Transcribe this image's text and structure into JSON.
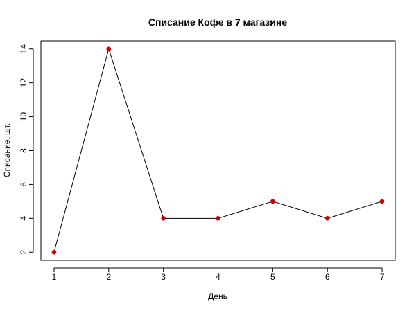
{
  "chart_data": {
    "type": "line",
    "title": "Списание Кофе в 7 магазине",
    "xlabel": "День",
    "ylabel": "Списание, шт.",
    "x": [
      1,
      2,
      3,
      4,
      5,
      6,
      7
    ],
    "series": [
      {
        "values": [
          2,
          14,
          4,
          4,
          5,
          4,
          5
        ],
        "color": "#000000",
        "marker_color": "#cc0000"
      }
    ],
    "xticks": [
      1,
      2,
      3,
      4,
      5,
      6,
      7
    ],
    "yticks": [
      2,
      4,
      6,
      8,
      10,
      12,
      14
    ],
    "xlim": [
      0.76,
      7.24
    ],
    "ylim": [
      1.52,
      14.48
    ],
    "grid": false
  }
}
